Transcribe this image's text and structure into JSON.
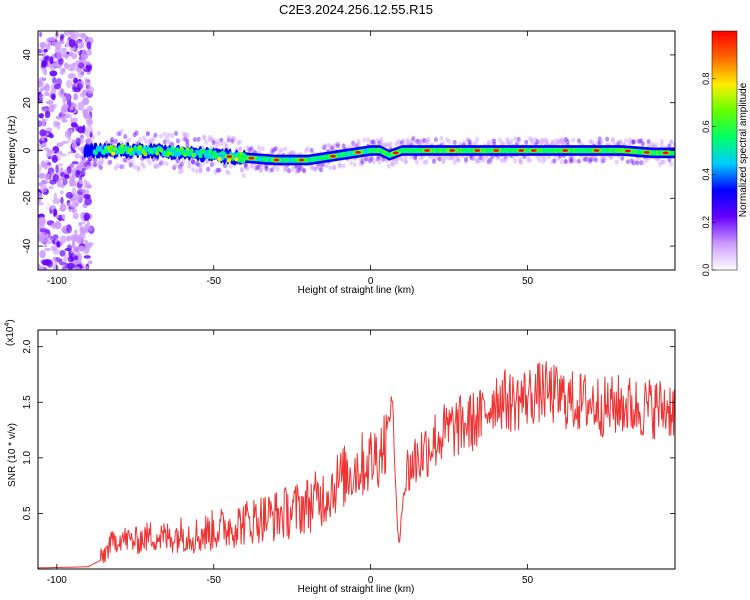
{
  "title": "C2E3.2024.256.12.55.R15",
  "chart_data": [
    {
      "type": "heatmap",
      "xlabel": "Height of straight line (km)",
      "ylabel": "Frequency (Hz)",
      "xlim": [
        -106,
        97
      ],
      "ylim": [
        -50,
        50
      ],
      "x_ticks": [
        -100,
        -50,
        0,
        50
      ],
      "y_ticks": [
        -40,
        -20,
        0,
        20,
        40
      ],
      "colorbar": {
        "label": "Normalized spectral amplitude",
        "range": [
          0.0,
          1.0
        ],
        "ticks": [
          0.0,
          0.2,
          0.4,
          0.6,
          0.8
        ],
        "colors": [
          "#ffffff",
          "#cc99ff",
          "#6600ff",
          "#0000ff",
          "#00ccff",
          "#00ff66",
          "#66ff00",
          "#ffee00",
          "#ff6600",
          "#ff0000"
        ]
      },
      "ridge": {
        "x": [
          -90,
          -80,
          -70,
          -60,
          -50,
          -40,
          -30,
          -20,
          -10,
          0,
          3,
          6,
          10,
          20,
          30,
          40,
          50,
          60,
          70,
          80,
          90,
          97
        ],
        "frequency": [
          0,
          0,
          0,
          -1,
          -2,
          -3,
          -4,
          -4,
          -2,
          0,
          0,
          -2,
          0,
          0,
          0,
          0,
          0,
          0,
          0,
          0,
          -1,
          -1
        ]
      },
      "noise_region_x": [
        -106,
        -89
      ]
    },
    {
      "type": "line",
      "xlabel": "Height of straight line (km)",
      "ylabel": "SNR (10 * v/v)",
      "y_multiplier": "(x10",
      "y_exponent": "4",
      "xlim": [
        -106,
        97
      ],
      "ylim": [
        0,
        2.15
      ],
      "x_ticks": [
        -100,
        -50,
        0,
        50
      ],
      "y_ticks": [
        0.5,
        1.0,
        1.5,
        2.0
      ],
      "y_tick_labels": [
        "0.5",
        "1.0",
        "1.5",
        "2.0"
      ],
      "color": "#ee3333",
      "series": [
        {
          "x": [
            -106,
            -90,
            -86,
            -83,
            -80,
            -75,
            -70,
            -65,
            -60,
            -55,
            -50,
            -45,
            -40,
            -35,
            -30,
            -25,
            -20,
            -15,
            -10,
            -5,
            0,
            3,
            5,
            7,
            8,
            9,
            10,
            12,
            15,
            20,
            25,
            30,
            35,
            40,
            45,
            50,
            55,
            60,
            65,
            70,
            75,
            80,
            85,
            90,
            97
          ],
          "y": [
            0.01,
            0.02,
            0.08,
            0.22,
            0.28,
            0.25,
            0.3,
            0.28,
            0.32,
            0.3,
            0.35,
            0.38,
            0.42,
            0.46,
            0.48,
            0.52,
            0.58,
            0.65,
            0.8,
            0.9,
            0.98,
            1.05,
            1.2,
            1.55,
            0.7,
            0.15,
            0.6,
            0.9,
            1.0,
            1.15,
            1.25,
            1.3,
            1.35,
            1.55,
            1.5,
            1.55,
            1.6,
            1.55,
            1.5,
            1.5,
            1.45,
            1.48,
            1.45,
            1.45,
            1.45
          ]
        }
      ]
    }
  ]
}
